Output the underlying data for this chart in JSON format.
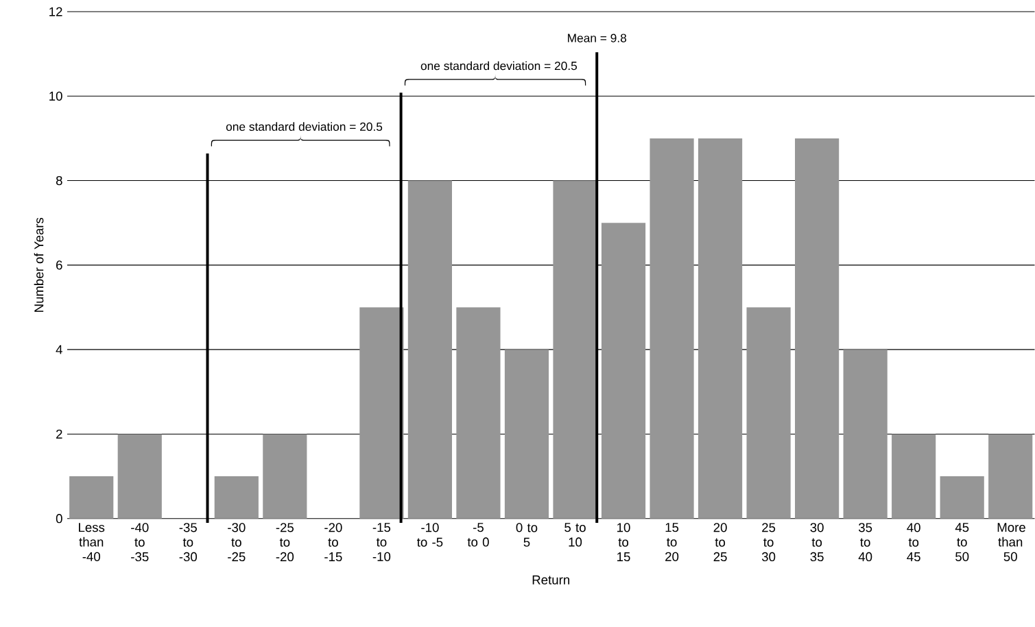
{
  "chart_data": {
    "type": "bar",
    "xlabel": "Return",
    "ylabel": "Number of Years",
    "categories": [
      "Less than -40",
      "-40 to -35",
      "-35 to -30",
      "-30 to -25",
      "-25 to -20",
      "-20 to -15",
      "-15 to -10",
      "-10 to -5",
      "-5 to 0",
      "0 to 5",
      "5 to 10",
      "10 to 15",
      "15 to 20",
      "20 to 25",
      "25 to 30",
      "30 to 35",
      "35 to 40",
      "40 to 45",
      "45 to 50",
      "More than 50"
    ],
    "values": [
      1,
      2,
      0,
      1,
      2,
      0,
      5,
      8,
      5,
      4,
      8,
      7,
      9,
      9,
      5,
      9,
      4,
      2,
      1,
      2
    ],
    "color": "#969696",
    "ylim": [
      0,
      12
    ],
    "yticks": [
      0,
      2,
      4,
      6,
      8,
      10,
      12
    ],
    "grid": "y",
    "annotations": [
      "one standard deviation = 20.5",
      "one standard deviation = 20.5",
      "Mean = 9.8"
    ]
  }
}
